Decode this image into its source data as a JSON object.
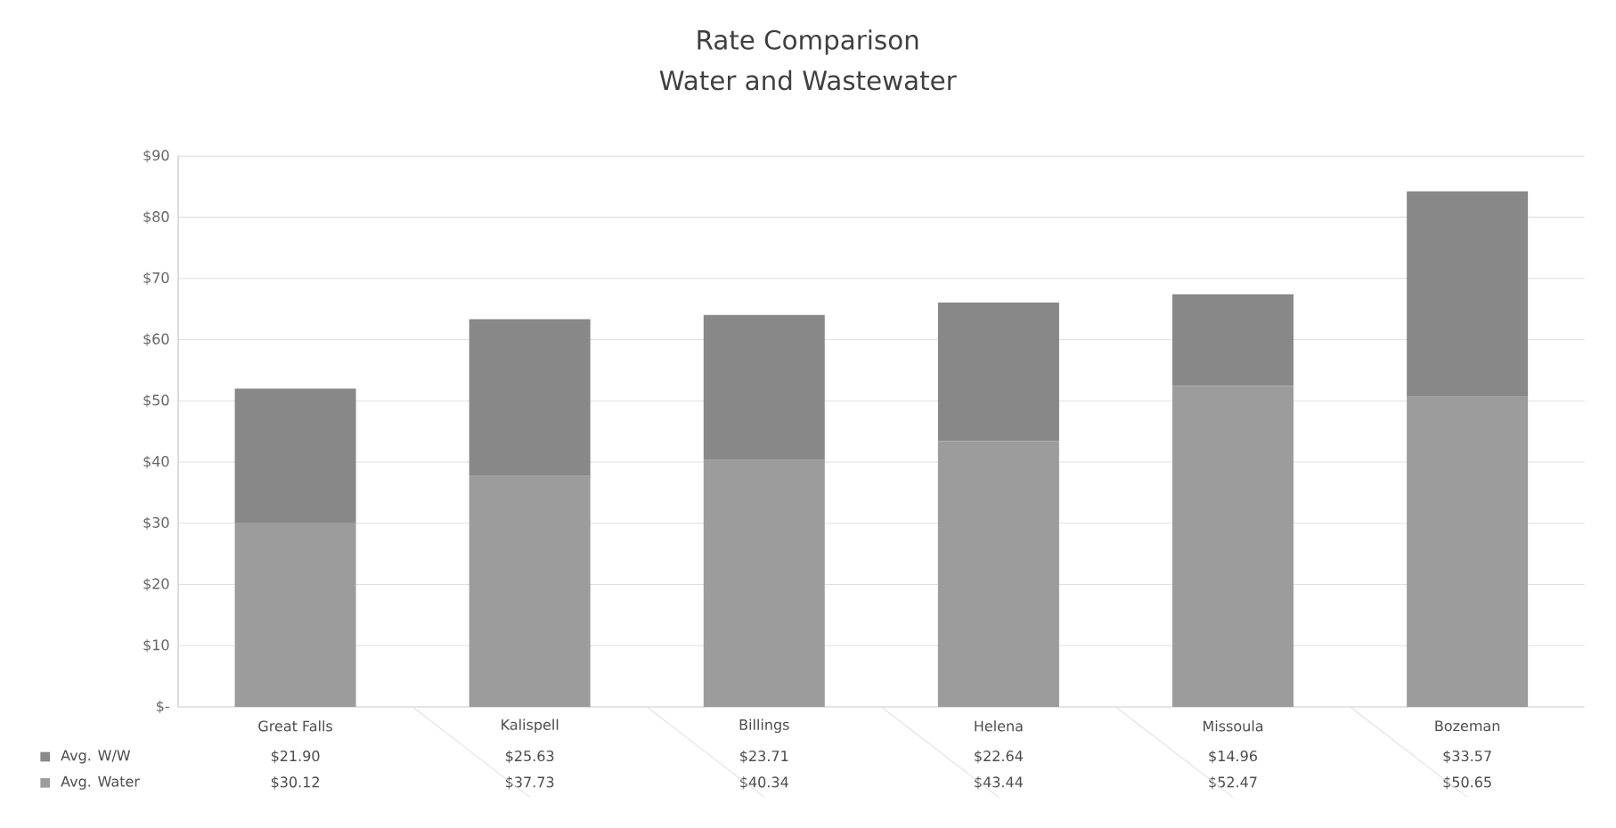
{
  "chart_data": {
    "type": "bar",
    "title": "Rate Comparison",
    "subtitle": "Water and Wastewater",
    "stacked": true,
    "categories": [
      "Great Falls",
      "Kalispell",
      "Billings",
      "Helena",
      "Missoula",
      "Bozeman"
    ],
    "series": [
      {
        "name": "Avg. Water",
        "color": "#9c9c9c",
        "values": [
          30.12,
          37.73,
          40.34,
          43.44,
          52.47,
          50.65
        ],
        "value_labels": [
          "$30.12",
          "$37.73",
          "$40.34",
          "$43.44",
          "$52.47",
          "$50.65"
        ]
      },
      {
        "name": "Avg. W/W",
        "color": "#888888",
        "values": [
          21.9,
          25.63,
          23.71,
          22.64,
          14.96,
          33.57
        ],
        "value_labels": [
          "$21.90",
          "$25.63",
          "$23.71",
          "$22.64",
          "$14.96",
          "$33.57"
        ]
      }
    ],
    "ylim": [
      0,
      90
    ],
    "yticks": [
      {
        "value": 0,
        "label": "$-"
      },
      {
        "value": 10,
        "label": "$10"
      },
      {
        "value": 20,
        "label": "$20"
      },
      {
        "value": 30,
        "label": "$30"
      },
      {
        "value": 40,
        "label": "$40"
      },
      {
        "value": 50,
        "label": "$50"
      },
      {
        "value": 60,
        "label": "$60"
      },
      {
        "value": 70,
        "label": "$70"
      },
      {
        "value": 80,
        "label": "$80"
      },
      {
        "value": 90,
        "label": "$90"
      }
    ],
    "grid": "y",
    "legend": "bottom"
  }
}
